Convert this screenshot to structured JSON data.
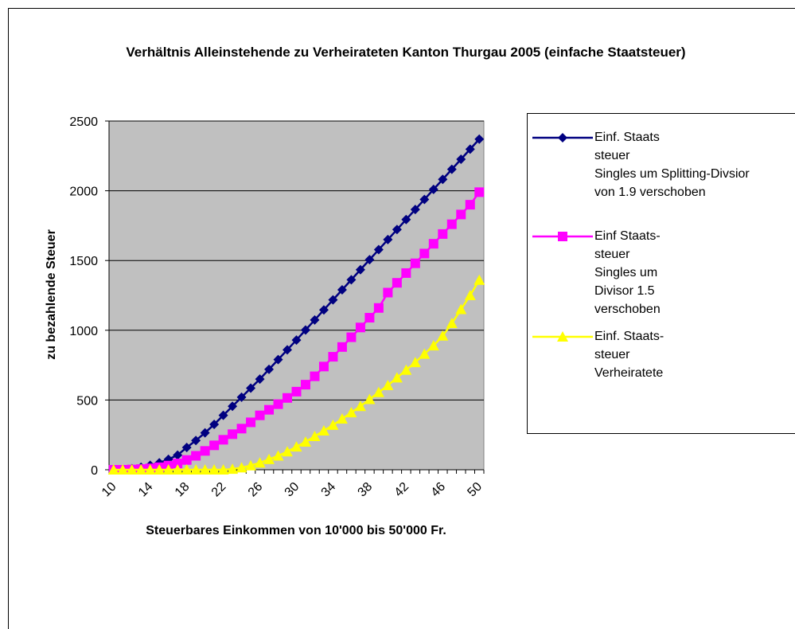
{
  "chart_data": {
    "type": "line",
    "title": "Verhältnis Alleinstehende zu Verheirateten Kanton Thurgau 2005 (einfache Staatsteuer)",
    "xlabel": "Steuerbares Einkommen von 10'000 bis 50'000 Fr.",
    "ylabel": "zu bezahlende Steuer",
    "categories": [
      "10",
      null,
      null,
      null,
      "14",
      null,
      null,
      null,
      "18",
      null,
      null,
      null,
      "22",
      null,
      null,
      null,
      "26",
      null,
      null,
      null,
      "30",
      null,
      null,
      null,
      "34",
      null,
      null,
      null,
      "38",
      null,
      null,
      null,
      "42",
      null,
      null,
      null,
      "46",
      null,
      null,
      null,
      "50"
    ],
    "series": [
      {
        "name": "Einf. Staats\nsteuer\nSingles um Splitting-Divsior\nvon 1.9 verschoben",
        "color": "#000080",
        "marker": "diamond",
        "values": [
          0,
          2,
          8,
          18,
          32,
          50,
          75,
          105,
          160,
          210,
          265,
          325,
          390,
          455,
          520,
          585,
          650,
          720,
          790,
          860,
          930,
          1002,
          1074,
          1146,
          1218,
          1290,
          1362,
          1434,
          1506,
          1578,
          1650,
          1722,
          1794,
          1866,
          1938,
          2010,
          2082,
          2154,
          2226,
          2298,
          2370
        ]
      },
      {
        "name": "Einf  Staats-\nsteuer\nSingles um\nDivisor 1.5\nverschoben",
        "color": "#ff00ff",
        "marker": "square",
        "values": [
          0,
          0,
          2,
          5,
          10,
          18,
          30,
          45,
          70,
          100,
          135,
          175,
          215,
          255,
          295,
          340,
          390,
          430,
          470,
          515,
          560,
          610,
          670,
          740,
          810,
          880,
          950,
          1020,
          1090,
          1160,
          1270,
          1340,
          1410,
          1480,
          1550,
          1620,
          1690,
          1760,
          1830,
          1900,
          1990
        ]
      },
      {
        "name": "Einf. Staats-\nsteuer\nVerheiratete",
        "color": "#ffff00",
        "marker": "triangle",
        "values": [
          0,
          0,
          0,
          0,
          0,
          0,
          0,
          0,
          0,
          0,
          0,
          0,
          0,
          5,
          15,
          30,
          50,
          75,
          100,
          130,
          165,
          200,
          240,
          280,
          320,
          365,
          410,
          455,
          505,
          555,
          605,
          660,
          715,
          770,
          830,
          890,
          960,
          1050,
          1150,
          1250,
          1360
        ]
      }
    ],
    "ylim": [
      0,
      2500
    ],
    "yticks": [
      0,
      500,
      1000,
      1500,
      2000,
      2500
    ],
    "grid": true,
    "legend": "right"
  }
}
